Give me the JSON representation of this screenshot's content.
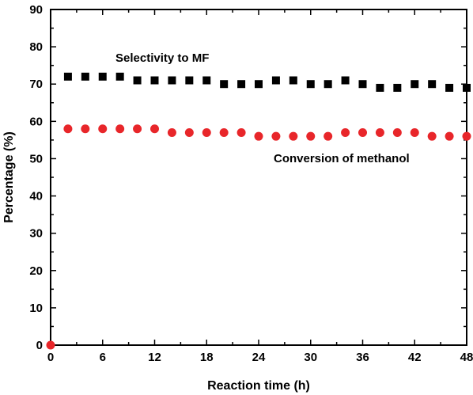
{
  "chart_data": {
    "type": "scatter",
    "xlabel": "Reaction time  (h)",
    "ylabel": "Percentage (%)",
    "xlim": [
      0,
      48
    ],
    "ylim": [
      0,
      90
    ],
    "x_ticks": [
      0,
      6,
      12,
      18,
      24,
      30,
      36,
      42,
      48
    ],
    "y_ticks": [
      0,
      10,
      20,
      30,
      40,
      50,
      60,
      70,
      80,
      90
    ],
    "grid": false,
    "legend": "none",
    "annotations": [
      {
        "text": "Selectivity to MF",
        "series": "selectivity"
      },
      {
        "text": "Conversion of methanol",
        "series": "conversion"
      }
    ],
    "series": [
      {
        "id": "selectivity",
        "marker": "square",
        "color": "#000000",
        "x": [
          2,
          4,
          6,
          8,
          10,
          12,
          14,
          16,
          18,
          20,
          22,
          24,
          26,
          28,
          30,
          32,
          34,
          36,
          38,
          40,
          42,
          44,
          46,
          48
        ],
        "y": [
          72,
          72,
          72,
          72,
          71,
          71,
          71,
          71,
          71,
          70,
          70,
          70,
          71,
          71,
          70,
          70,
          71,
          70,
          69,
          69,
          70,
          70,
          69,
          69
        ]
      },
      {
        "id": "conversion",
        "marker": "circle",
        "color": "#e8262a",
        "x": [
          0,
          2,
          4,
          6,
          8,
          10,
          12,
          14,
          16,
          18,
          20,
          22,
          24,
          26,
          28,
          30,
          32,
          34,
          36,
          38,
          40,
          42,
          44,
          46,
          48
        ],
        "y": [
          0,
          58,
          58,
          58,
          58,
          58,
          58,
          57,
          57,
          57,
          57,
          57,
          56,
          56,
          56,
          56,
          56,
          57,
          57,
          57,
          57,
          57,
          56,
          56,
          56
        ]
      }
    ]
  }
}
